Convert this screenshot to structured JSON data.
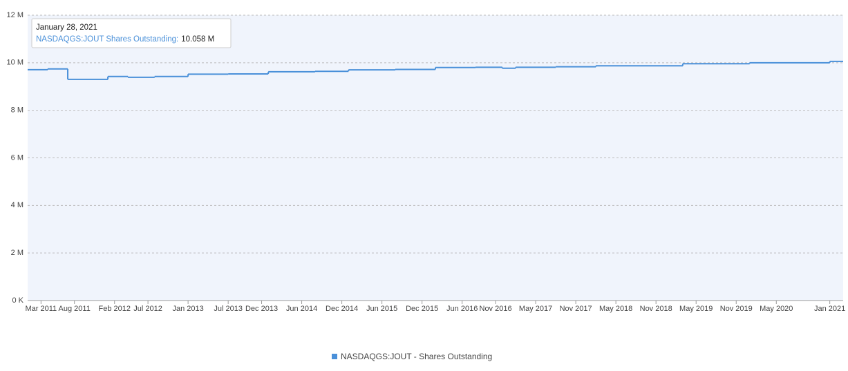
{
  "chart_data": {
    "type": "line",
    "step": true,
    "x": [
      "2011-01",
      "2011-04",
      "2011-07",
      "2012-01",
      "2012-04",
      "2012-08",
      "2013-01",
      "2013-07",
      "2014-01",
      "2014-08",
      "2015-01",
      "2015-08",
      "2016-02",
      "2016-08",
      "2016-12",
      "2017-02",
      "2017-08",
      "2018-02",
      "2019-03",
      "2020-01",
      "2021-01"
    ],
    "series": [
      {
        "name": "NASDAQGS:JOUT - Shares Outstanding",
        "color": "#4a90d9",
        "values": [
          9710000,
          9740000,
          9300000,
          9420000,
          9390000,
          9420000,
          9520000,
          9530000,
          9620000,
          9640000,
          9700000,
          9720000,
          9800000,
          9810000,
          9770000,
          9810000,
          9830000,
          9870000,
          9960000,
          10000000,
          10058000
        ]
      }
    ],
    "xlim": [
      "2011-01",
      "2021-03"
    ],
    "xticks": [
      {
        "value": "2011-03",
        "label": "Mar 2011"
      },
      {
        "value": "2011-08",
        "label": "Aug 2011"
      },
      {
        "value": "2012-02",
        "label": "Feb 2012"
      },
      {
        "value": "2012-07",
        "label": "Jul 2012"
      },
      {
        "value": "2013-01",
        "label": "Jan 2013"
      },
      {
        "value": "2013-07",
        "label": "Jul 2013"
      },
      {
        "value": "2013-12",
        "label": "Dec 2013"
      },
      {
        "value": "2014-06",
        "label": "Jun 2014"
      },
      {
        "value": "2014-12",
        "label": "Dec 2014"
      },
      {
        "value": "2015-06",
        "label": "Jun 2015"
      },
      {
        "value": "2015-12",
        "label": "Dec 2015"
      },
      {
        "value": "2016-06",
        "label": "Jun 2016"
      },
      {
        "value": "2016-11",
        "label": "Nov 2016"
      },
      {
        "value": "2017-05",
        "label": "May 2017"
      },
      {
        "value": "2017-11",
        "label": "Nov 2017"
      },
      {
        "value": "2018-05",
        "label": "May 2018"
      },
      {
        "value": "2018-11",
        "label": "Nov 2018"
      },
      {
        "value": "2019-05",
        "label": "May 2019"
      },
      {
        "value": "2019-11",
        "label": "Nov 2019"
      },
      {
        "value": "2020-05",
        "label": "May 2020"
      },
      {
        "value": "2021-01",
        "label": "Jan 2021"
      }
    ],
    "ylim": [
      0,
      12000000
    ],
    "yticks": [
      {
        "value": 0,
        "label": "0 K"
      },
      {
        "value": 2000000,
        "label": "2 M"
      },
      {
        "value": 4000000,
        "label": "4 M"
      },
      {
        "value": 6000000,
        "label": "6 M"
      },
      {
        "value": 8000000,
        "label": "8 M"
      },
      {
        "value": 10000000,
        "label": "10 M"
      },
      {
        "value": 12000000,
        "label": "12 M"
      }
    ],
    "grid": true,
    "tooltip": {
      "title": "January 28, 2021",
      "series": "NASDAQGS:JOUT Shares Outstanding:",
      "value": 10058000,
      "value_label": "10.058 M"
    }
  }
}
